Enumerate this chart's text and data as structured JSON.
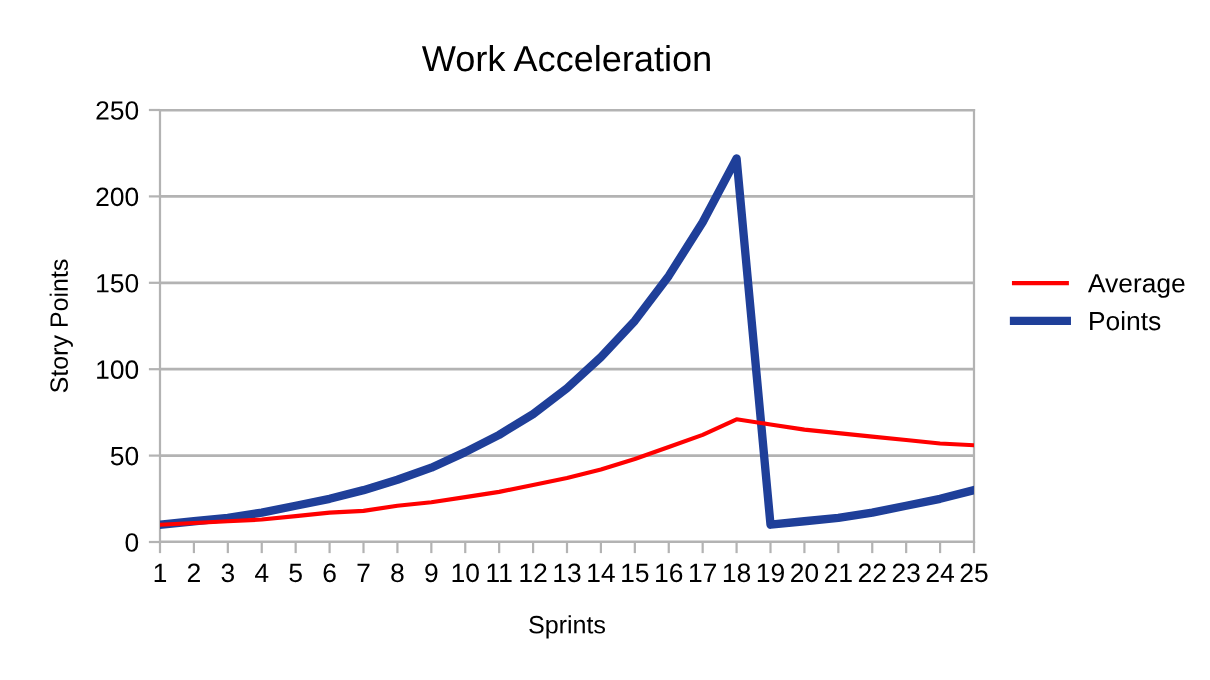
{
  "chart_data": {
    "type": "line",
    "title": "Work Acceleration",
    "xlabel": "Sprints",
    "ylabel": "Story Points",
    "categories": [
      "1",
      "2",
      "3",
      "4",
      "5",
      "6",
      "7",
      "8",
      "9",
      "10",
      "11",
      "12",
      "13",
      "14",
      "15",
      "16",
      "17",
      "18",
      "19",
      "20",
      "21",
      "22",
      "23",
      "24",
      "25"
    ],
    "series": [
      {
        "name": "Average",
        "color": "#ff0000",
        "values": [
          10,
          11,
          12,
          13,
          15,
          17,
          18,
          21,
          23,
          26,
          29,
          33,
          37,
          42,
          48,
          55,
          62,
          71,
          68,
          65,
          63,
          61,
          59,
          57,
          56
        ]
      },
      {
        "name": "Points",
        "color": "#1f3f99",
        "values": [
          10,
          12,
          14,
          17,
          21,
          25,
          30,
          36,
          43,
          52,
          62,
          74,
          89,
          107,
          128,
          154,
          185,
          222,
          10,
          12,
          14,
          17,
          21,
          25,
          30
        ]
      }
    ],
    "ylim": [
      0,
      250
    ],
    "yticks": [
      0,
      50,
      100,
      150,
      200,
      250
    ],
    "grid": "y",
    "legend": "right",
    "marker": "none",
    "line_style": "solid"
  }
}
